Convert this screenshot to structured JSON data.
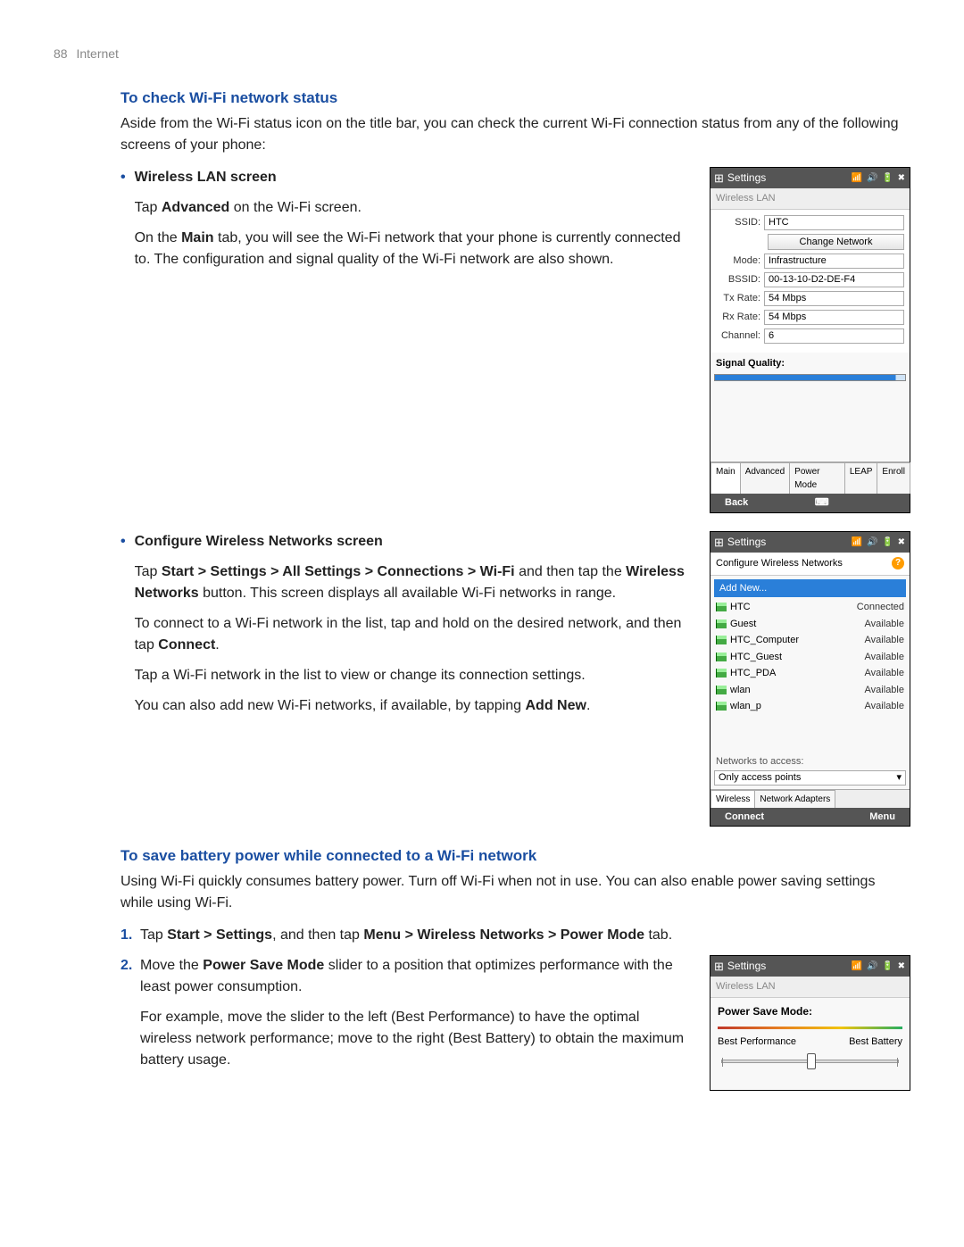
{
  "page": {
    "number": "88",
    "section": "Internet"
  },
  "h1": "To check Wi-Fi network status",
  "intro": "Aside from the Wi-Fi status icon on the title bar, you can check the current Wi-Fi connection status from any of the following screens of your phone:",
  "bullet1": {
    "title": "Wireless LAN screen",
    "p1a": "Tap ",
    "p1b": "Advanced",
    "p1c": " on the Wi-Fi screen.",
    "p2a": "On the ",
    "p2b": "Main",
    "p2c": " tab, you will see the Wi-Fi network that your phone is currently connected to. The configuration and signal quality of the Wi-Fi network are also shown."
  },
  "bullet2": {
    "title": "Configure Wireless Networks screen",
    "p1a": "Tap ",
    "p1b": "Start > Settings > All Settings > Connections > Wi-Fi",
    "p1c": " and then tap the ",
    "p1d": "Wireless Networks",
    "p1e": " button. This screen displays all available Wi-Fi networks in range.",
    "p2a": "To connect to a Wi-Fi network in the list, tap and hold on the desired network, and then tap ",
    "p2b": "Connect",
    "p2c": ".",
    "p3": "Tap a Wi-Fi network in the list to view or change its connection settings.",
    "p4a": "You can also add new Wi-Fi networks, if available, by tapping ",
    "p4b": "Add New",
    "p4c": "."
  },
  "h2": "To save battery power while connected to a Wi-Fi network",
  "p_after_h2": "Using Wi-Fi quickly consumes battery power. Turn off Wi-Fi when not in use. You can also enable power saving settings while using Wi-Fi.",
  "step1": {
    "a": "Tap ",
    "b": "Start > Settings",
    "c": ", and then tap ",
    "d": "Menu > Wireless Networks > Power Mode",
    "e": " tab."
  },
  "step2": {
    "a": "Move the ",
    "b": "Power Save Mode",
    "c": " slider to a position that optimizes performance with the least power consumption.",
    "d": "For example, move the slider to the left (Best Performance) to have the optimal wireless network performance; move to the right (Best Battery) to obtain the maximum battery usage."
  },
  "shot1": {
    "title": "Settings",
    "status": "📶 🔊 🔋 ✖",
    "sub": "Wireless LAN",
    "rows": {
      "ssid_lbl": "SSID:",
      "ssid_val": "HTC",
      "change_btn": "Change Network",
      "mode_lbl": "Mode:",
      "mode_val": "Infrastructure",
      "bssid_lbl": "BSSID:",
      "bssid_val": "00-13-10-D2-DE-F4",
      "tx_lbl": "Tx Rate:",
      "tx_val": "54 Mbps",
      "rx_lbl": "Rx Rate:",
      "rx_val": "54 Mbps",
      "ch_lbl": "Channel:",
      "ch_val": "6"
    },
    "sig": "Signal Quality:",
    "tabs": [
      "Main",
      "Advanced",
      "Power Mode",
      "LEAP",
      "Enroll"
    ],
    "footer": {
      "left": "Back",
      "mid": "⌨"
    }
  },
  "shot2": {
    "title": "Settings",
    "status": "📶 🔊 🔋 ✖",
    "sub": "Configure Wireless Networks",
    "addnew": "Add New...",
    "nets": [
      {
        "name": "HTC",
        "status": "Connected"
      },
      {
        "name": "Guest",
        "status": "Available"
      },
      {
        "name": "HTC_Computer",
        "status": "Available"
      },
      {
        "name": "HTC_Guest",
        "status": "Available"
      },
      {
        "name": "HTC_PDA",
        "status": "Available"
      },
      {
        "name": "wlan",
        "status": "Available"
      },
      {
        "name": "wlan_p",
        "status": "Available"
      }
    ],
    "nta_lbl": "Networks to access:",
    "nta_val": "Only access points",
    "tabs": [
      "Wireless",
      "Network Adapters"
    ],
    "footer": {
      "left": "Connect",
      "right": "Menu"
    }
  },
  "shot3": {
    "title": "Settings",
    "status": "📶 🔊 🔋 ✖",
    "sub": "Wireless LAN",
    "psm": "Power Save Mode:",
    "left": "Best Performance",
    "right": "Best Battery"
  }
}
